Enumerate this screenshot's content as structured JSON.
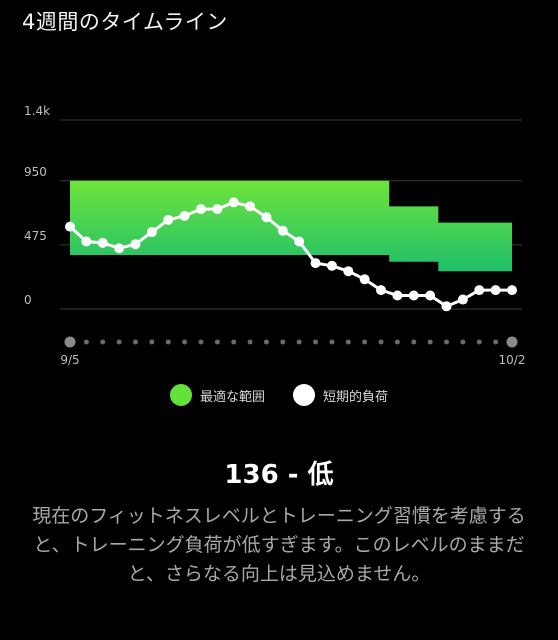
{
  "title": "4週間のタイムライン",
  "chart_data": {
    "type": "line",
    "y_ticks": [
      "1.4k",
      "950",
      "475",
      "0"
    ],
    "y_tick_values": [
      1400,
      950,
      475,
      0
    ],
    "ylim": [
      0,
      1400
    ],
    "x_labels": [
      "9/5",
      "10/2"
    ],
    "x_count": 28,
    "grid": true,
    "optimal_range": {
      "name": "最適な範囲",
      "lower": [
        400,
        400,
        400,
        400,
        400,
        400,
        400,
        400,
        400,
        400,
        400,
        400,
        400,
        400,
        400,
        400,
        400,
        400,
        400,
        400,
        350,
        350,
        350,
        280,
        280,
        280,
        280,
        280
      ],
      "upper": [
        950,
        950,
        950,
        950,
        950,
        950,
        950,
        950,
        950,
        950,
        950,
        950,
        950,
        950,
        950,
        950,
        950,
        950,
        950,
        950,
        760,
        760,
        760,
        640,
        640,
        640,
        640,
        640
      ]
    },
    "series": [
      {
        "name": "短期的負荷",
        "values": [
          610,
          500,
          490,
          450,
          480,
          570,
          660,
          690,
          740,
          740,
          790,
          760,
          680,
          580,
          500,
          340,
          320,
          280,
          220,
          140,
          100,
          100,
          100,
          20,
          70,
          140,
          140,
          140
        ]
      }
    ]
  },
  "legend": [
    {
      "label": "最適な範囲",
      "color": "#63e23a"
    },
    {
      "label": "短期的負荷",
      "color": "#ffffff"
    }
  ],
  "headline": "136 - 低",
  "description": "現在のフィットネスレベルとトレーニング習慣を考慮すると、トレーニング負荷が低すぎます。このレベルのままだと、さらなる向上は見込めません。"
}
